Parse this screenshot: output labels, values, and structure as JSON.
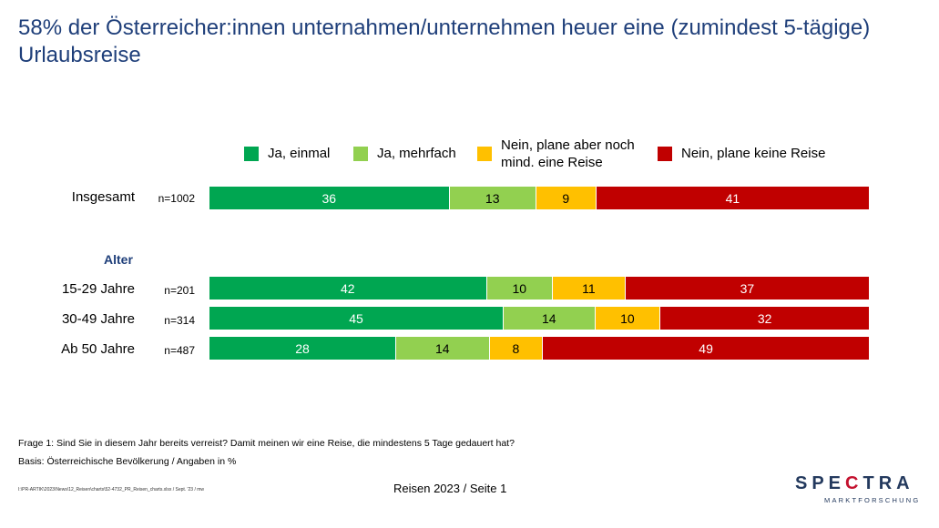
{
  "title": "58% der Österreicher:innen unternahmen/unternehmen heuer eine (zumindest 5-tägige) Urlaubsreise",
  "colors": {
    "ja_einmal": "#00a651",
    "ja_mehrfach": "#92d050",
    "nein_plane": "#ffc000",
    "nein_keine": "#c00000"
  },
  "legend": [
    {
      "label": "Ja, einmal",
      "color": "#00a651"
    },
    {
      "label": "Ja, mehrfach",
      "color": "#92d050"
    },
    {
      "label": "Nein, plane aber noch mind. eine Reise",
      "color": "#ffc000"
    },
    {
      "label": "Nein, plane keine Reise",
      "color": "#c00000"
    }
  ],
  "section_label": "Alter",
  "chart_data": {
    "type": "bar",
    "orientation": "horizontal-stacked-100",
    "categories": [
      "Insgesamt",
      "15-29 Jahre",
      "30-49 Jahre",
      "Ab 50 Jahre"
    ],
    "sample_sizes": [
      "n=1002",
      "n=201",
      "n=314",
      "n=487"
    ],
    "series": [
      {
        "name": "Ja, einmal",
        "values": [
          36,
          42,
          45,
          28
        ]
      },
      {
        "name": "Ja, mehrfach",
        "values": [
          13,
          10,
          14,
          14
        ]
      },
      {
        "name": "Nein, plane aber noch mind. eine Reise",
        "values": [
          9,
          11,
          10,
          8
        ]
      },
      {
        "name": "Nein, plane keine Reise",
        "values": [
          41,
          37,
          32,
          49
        ]
      }
    ],
    "unit": "%"
  },
  "footnotes": {
    "question": "Frage 1: Sind Sie in diesem Jahr bereits verreist? Damit meinen wir eine Reise, die mindestens 5 Tage gedauert hat?",
    "basis": "Basis: Österreichische Bevölkerung / Angaben in %",
    "path": "I:\\PR-ARTIK\\2023\\News\\12_Reisen\\charts\\52-4732_PR_Reisen_charts.xlsx / Sept. '23 / mw"
  },
  "footer": "Reisen 2023  /  Seite 1",
  "logo": {
    "main": "SPECTRA",
    "sub": "MARKTFORSCHUNG"
  }
}
